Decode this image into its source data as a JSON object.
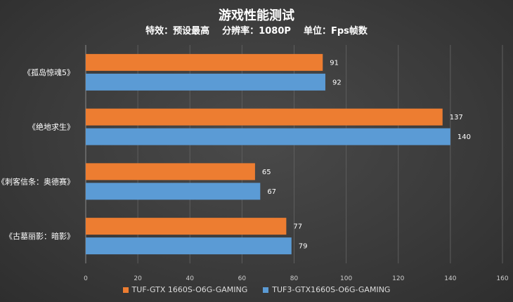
{
  "chart_data": {
    "type": "bar",
    "orientation": "horizontal",
    "title": "游戏性能测试",
    "subtitle": "特效：预设最高    分辨率：1080P    单位：Fps帧数",
    "categories": [
      "《孤岛惊魂5》",
      "《绝地求生》",
      "《刺客信条：奥德赛》",
      "《古墓丽影：暗影》"
    ],
    "series": [
      {
        "name": "TUF-GTX 1660S-O6G-GAMING",
        "color": "#ED7D31",
        "values": [
          91,
          137,
          65,
          77
        ]
      },
      {
        "name": "TUF3-GTX1660S-O6G-GAMING",
        "color": "#5B9BD5",
        "values": [
          92,
          140,
          67,
          79
        ]
      }
    ],
    "xlim": [
      0,
      160
    ],
    "xticks": [
      "0",
      "20",
      "40",
      "60",
      "80",
      "100",
      "120",
      "140",
      "160"
    ],
    "grid": true,
    "legend_position": "bottom"
  }
}
